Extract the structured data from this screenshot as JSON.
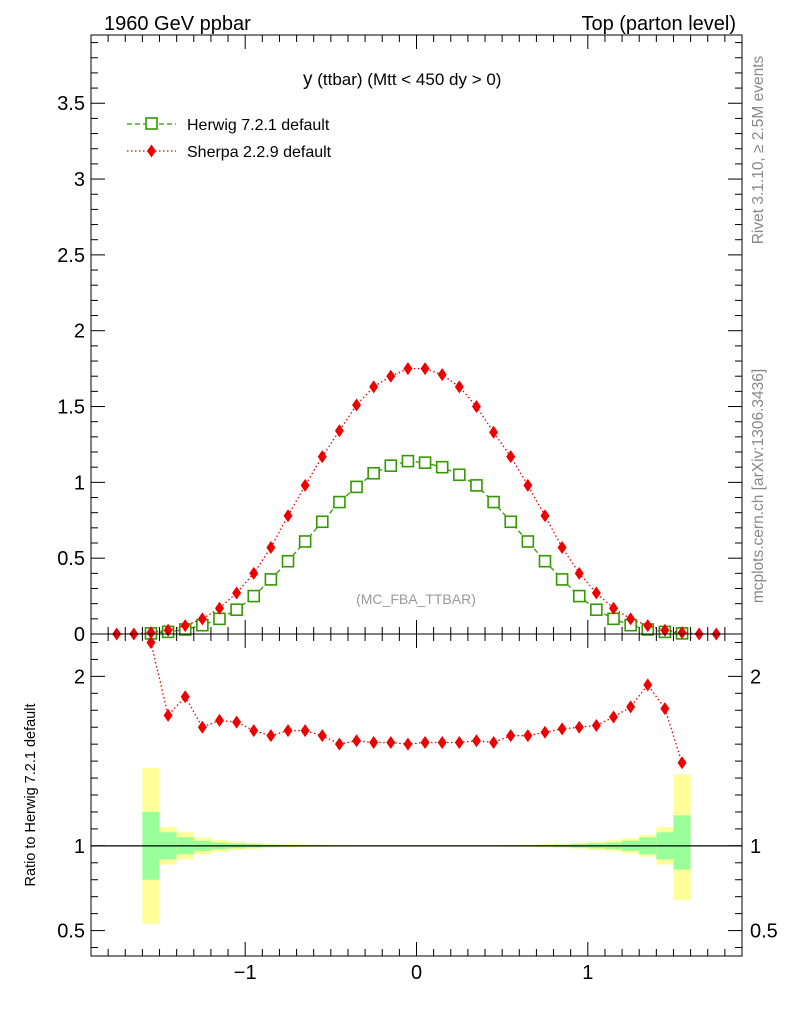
{
  "header": {
    "left": "1960 GeV ppbar",
    "right": "Top (parton level)"
  },
  "side_labels": {
    "rivet": "Rivet 3.1.10, ≥ 2.5M events",
    "mcplots": "mcplots.cern.ch [arXiv:1306.3436]"
  },
  "chart_data": [
    {
      "panel": "main",
      "type": "line",
      "title_main": "y",
      "title_rest": " (ttbar) (Mtt < 450 dy > 0)",
      "watermark": "(MC_FBA_TTBAR)",
      "xlabel": "",
      "ylabel": "",
      "xlim": [
        -1.9,
        1.9
      ],
      "ylim": [
        0,
        3.95
      ],
      "grid": false,
      "legend_placement": "top-left",
      "xticks": [
        -1,
        0,
        1
      ],
      "yticks": [
        0,
        0.5,
        1,
        1.5,
        2,
        2.5,
        3,
        3.5
      ],
      "ytick_labels": [
        "0",
        "0.5",
        "1",
        "1.5",
        "2",
        "2.5",
        "3",
        "3.5"
      ],
      "x": [
        -1.55,
        -1.45,
        -1.35,
        -1.25,
        -1.15,
        -1.05,
        -0.95,
        -0.85,
        -0.75,
        -0.65,
        -0.55,
        -0.45,
        -0.35,
        -0.25,
        -0.15,
        -0.05,
        0.05,
        0.15,
        0.25,
        0.35,
        0.45,
        0.55,
        0.65,
        0.75,
        0.85,
        0.95,
        1.05,
        1.15,
        1.25,
        1.35,
        1.45,
        1.55
      ],
      "series": [
        {
          "name": "Herwig 7.2.1 default",
          "color": "#339900",
          "marker": "open-square",
          "line": "dashed",
          "values": [
            0.004,
            0.014,
            0.03,
            0.058,
            0.1,
            0.16,
            0.25,
            0.36,
            0.48,
            0.61,
            0.74,
            0.87,
            0.97,
            1.06,
            1.11,
            1.14,
            1.13,
            1.1,
            1.05,
            0.98,
            0.87,
            0.74,
            0.61,
            0.48,
            0.36,
            0.25,
            0.16,
            0.1,
            0.058,
            0.03,
            0.014,
            0.004
          ]
        },
        {
          "name": "Sherpa 2.2.9 default",
          "color": "#ee0000",
          "marker": "filled-diamond",
          "line": "dotted",
          "values": [
            0.009,
            0.025,
            0.055,
            0.1,
            0.17,
            0.27,
            0.4,
            0.57,
            0.78,
            0.98,
            1.17,
            1.34,
            1.51,
            1.63,
            1.7,
            1.75,
            1.75,
            1.71,
            1.63,
            1.5,
            1.33,
            1.17,
            0.98,
            0.78,
            0.57,
            0.4,
            0.27,
            0.17,
            0.1,
            0.055,
            0.025,
            0.009
          ]
        }
      ],
      "edge_points": {
        "x": [
          -1.75,
          -1.65,
          1.65,
          1.75
        ],
        "values": [
          0.0,
          0.0,
          0.0,
          0.0
        ]
      }
    },
    {
      "panel": "ratio",
      "type": "line",
      "xlabel": "",
      "ylabel": "Ratio to Herwig 7.2.1 default",
      "xlim": [
        -1.9,
        1.9
      ],
      "ylim": [
        0.35,
        2.25
      ],
      "grid": false,
      "xticks": [
        -1,
        0,
        1
      ],
      "xtick_labels": [
        "−1",
        "0",
        "1"
      ],
      "yticks": [
        0.5,
        1,
        2
      ],
      "ytick_labels": [
        "0.5",
        "1",
        "2"
      ],
      "reference_line": 1,
      "x": [
        -1.55,
        -1.45,
        -1.35,
        -1.25,
        -1.15,
        -1.05,
        -0.95,
        -0.85,
        -0.75,
        -0.65,
        -0.55,
        -0.45,
        -0.35,
        -0.25,
        -0.15,
        -0.05,
        0.05,
        0.15,
        0.25,
        0.35,
        0.45,
        0.55,
        0.65,
        0.75,
        0.85,
        0.95,
        1.05,
        1.15,
        1.25,
        1.35,
        1.45,
        1.55
      ],
      "series": [
        {
          "name": "Sherpa 2.2.9 default",
          "color": "#ee0000",
          "marker": "filled-diamond",
          "line": "dotted",
          "values": [
            2.2,
            1.77,
            1.88,
            1.7,
            1.74,
            1.73,
            1.68,
            1.65,
            1.68,
            1.68,
            1.65,
            1.6,
            1.62,
            1.61,
            1.61,
            1.6,
            1.61,
            1.61,
            1.61,
            1.62,
            1.61,
            1.65,
            1.65,
            1.67,
            1.69,
            1.7,
            1.71,
            1.76,
            1.82,
            1.95,
            1.81,
            1.49
          ]
        }
      ],
      "bands": {
        "x_edges": [
          -1.6,
          -1.5,
          -1.4,
          -1.3,
          -1.2,
          -1.1,
          -1.0,
          -0.9,
          -0.8,
          -0.7,
          -0.6,
          -0.5,
          -0.4,
          -0.3,
          -0.2,
          -0.1,
          0.0,
          0.1,
          0.2,
          0.3,
          0.4,
          0.5,
          0.6,
          0.7,
          0.8,
          0.9,
          1.0,
          1.1,
          1.2,
          1.3,
          1.4,
          1.5,
          1.6
        ],
        "stat": {
          "color": "#99ff99",
          "lo": [
            0.8,
            0.92,
            0.95,
            0.97,
            0.98,
            0.985,
            0.99,
            0.993,
            0.995,
            0.996,
            0.997,
            0.998,
            0.998,
            0.998,
            0.998,
            0.998,
            0.998,
            0.998,
            0.998,
            0.998,
            0.998,
            0.997,
            0.996,
            0.995,
            0.993,
            0.99,
            0.985,
            0.98,
            0.97,
            0.95,
            0.92,
            0.86
          ],
          "hi": [
            1.2,
            1.08,
            1.05,
            1.03,
            1.02,
            1.015,
            1.01,
            1.007,
            1.005,
            1.004,
            1.003,
            1.002,
            1.002,
            1.002,
            1.002,
            1.002,
            1.002,
            1.002,
            1.002,
            1.002,
            1.002,
            1.003,
            1.004,
            1.005,
            1.007,
            1.01,
            1.015,
            1.02,
            1.03,
            1.05,
            1.08,
            1.18
          ]
        },
        "total": {
          "color": "#ffff99",
          "lo": [
            0.54,
            0.89,
            0.92,
            0.95,
            0.965,
            0.975,
            0.982,
            0.987,
            0.99,
            0.992,
            0.994,
            0.995,
            0.996,
            0.996,
            0.996,
            0.996,
            0.996,
            0.996,
            0.996,
            0.996,
            0.996,
            0.995,
            0.993,
            0.99,
            0.987,
            0.983,
            0.976,
            0.968,
            0.955,
            0.935,
            0.89,
            0.68
          ],
          "hi": [
            1.46,
            1.11,
            1.08,
            1.05,
            1.035,
            1.025,
            1.018,
            1.013,
            1.01,
            1.008,
            1.006,
            1.005,
            1.004,
            1.004,
            1.004,
            1.004,
            1.004,
            1.004,
            1.004,
            1.004,
            1.004,
            1.005,
            1.007,
            1.01,
            1.013,
            1.017,
            1.024,
            1.032,
            1.045,
            1.065,
            1.11,
            1.42
          ]
        }
      }
    }
  ]
}
